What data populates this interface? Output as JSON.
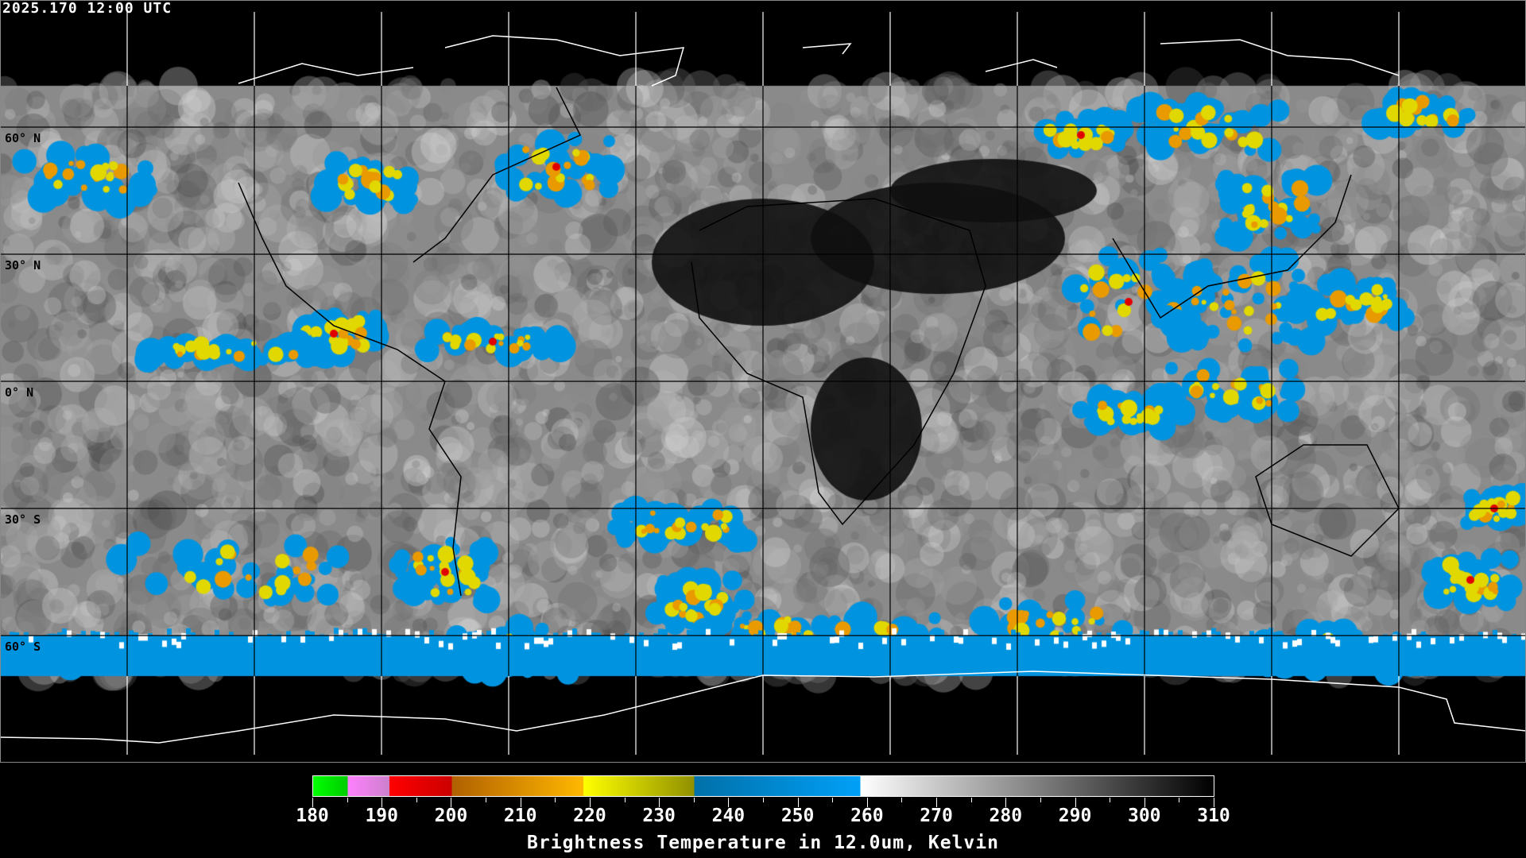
{
  "header": {
    "timestamp": "2025.170 12:00 UTC"
  },
  "map": {
    "projection": "equirectangular",
    "grid_spacing_deg": 30,
    "lat_labels": [
      "60° N",
      "30° N",
      "0° N",
      "30° S",
      "60° S"
    ],
    "grid_color_on_data": "#000000",
    "grid_color_on_background": "#ffffff",
    "coastline_color_on_data": "#000000",
    "coastline_color_on_background": "#ffffff"
  },
  "colorbar": {
    "title": "Brightness Temperature in 12.0um, Kelvin",
    "range": [
      180,
      310
    ],
    "tick_labels": [
      "180",
      "190",
      "200",
      "210",
      "220",
      "230",
      "240",
      "250",
      "260",
      "270",
      "280",
      "290",
      "300",
      "310"
    ],
    "segments": [
      {
        "from": 180,
        "to": 185,
        "colors": [
          "#00ff00",
          "#00cc00"
        ]
      },
      {
        "from": 185,
        "to": 191,
        "colors": [
          "#ff80ff",
          "#cc80cc"
        ]
      },
      {
        "from": 191,
        "to": 200,
        "colors": [
          "#ff0000",
          "#cc0000"
        ]
      },
      {
        "from": 200,
        "to": 219,
        "colors": [
          "#b06000",
          "#ffb800"
        ]
      },
      {
        "from": 219,
        "to": 235,
        "colors": [
          "#ffff00",
          "#909000"
        ]
      },
      {
        "from": 235,
        "to": 259,
        "colors": [
          "#0070a8",
          "#00a0f8"
        ]
      },
      {
        "from": 259,
        "to": 310,
        "colors": [
          "#ffffff",
          "#000000"
        ]
      }
    ]
  }
}
